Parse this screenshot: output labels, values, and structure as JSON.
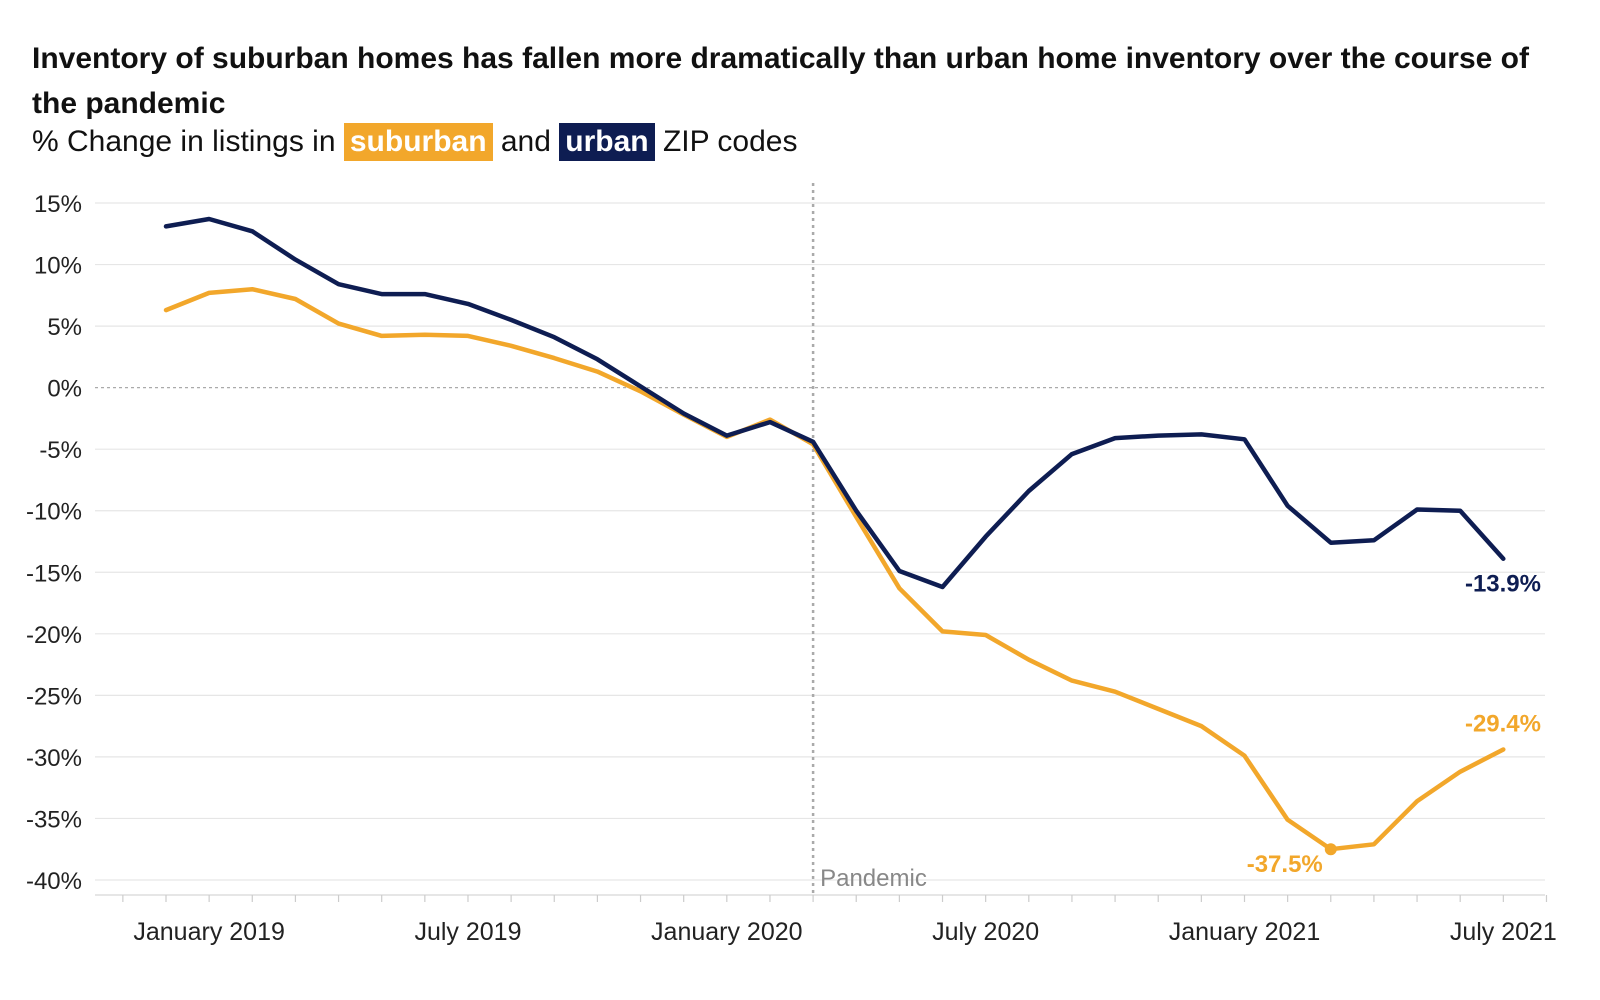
{
  "title": "Inventory of suburban homes has fallen more dramatically than urban home inventory over the course of the pandemic",
  "subtitle": {
    "prefix": "% Change in listings in",
    "suburban_label": "suburban",
    "connector": "and",
    "urban_label": "urban",
    "suffix": "ZIP codes"
  },
  "colors": {
    "suburban": "#F2A72B",
    "urban": "#0E1D52",
    "grid": "#e6e6e6",
    "zero": "#aaaaaa",
    "pandemic": "#aaaaaa"
  },
  "chart_data": {
    "type": "line",
    "x": [
      "2018-12",
      "2019-01",
      "2019-02",
      "2019-03",
      "2019-04",
      "2019-05",
      "2019-06",
      "2019-07",
      "2019-08",
      "2019-09",
      "2019-10",
      "2019-11",
      "2019-12",
      "2020-01",
      "2020-02",
      "2020-03",
      "2020-04",
      "2020-05",
      "2020-06",
      "2020-07",
      "2020-08",
      "2020-09",
      "2020-10",
      "2020-11",
      "2020-12",
      "2021-01",
      "2021-02",
      "2021-03",
      "2021-04",
      "2021-05",
      "2021-06",
      "2021-07"
    ],
    "series": [
      {
        "name": "suburban",
        "values": [
          6.3,
          7.7,
          8.0,
          7.2,
          5.2,
          4.2,
          4.3,
          4.2,
          3.4,
          2.4,
          1.3,
          -0.3,
          -2.2,
          -4.0,
          -2.6,
          -4.6,
          -10.5,
          -16.3,
          -19.8,
          -20.1,
          -22.1,
          -23.8,
          -24.7,
          -26.1,
          -27.5,
          -29.9,
          -35.1,
          -37.5,
          -37.1,
          -33.6,
          -31.2,
          -29.4
        ]
      },
      {
        "name": "urban",
        "values": [
          13.1,
          13.7,
          12.7,
          10.4,
          8.4,
          7.6,
          7.6,
          6.8,
          5.5,
          4.1,
          2.3,
          0.1,
          -2.1,
          -3.9,
          -2.8,
          -4.4,
          -10.0,
          -14.9,
          -16.2,
          -12.1,
          -8.4,
          -5.4,
          -4.1,
          -3.9,
          -3.8,
          -4.2,
          -9.6,
          -12.6,
          -12.4,
          -9.9,
          -10.0,
          -13.9
        ]
      }
    ],
    "ylim": [
      -40,
      15
    ],
    "y_ticks": [
      "15%",
      "10%",
      "5%",
      "0%",
      "-5%",
      "-10%",
      "-15%",
      "-20%",
      "-25%",
      "-30%",
      "-35%",
      "-40%"
    ],
    "x_tick_labels": [
      "January 2019",
      "July 2019",
      "January 2020",
      "July 2020",
      "January 2021",
      "July 2021"
    ],
    "annotations": {
      "pandemic": {
        "x": "2020-03",
        "label": "Pandemic"
      },
      "suburban_min": {
        "x": "2021-03",
        "label": "-37.5%"
      },
      "suburban_last": {
        "x": "2021-07",
        "label": "-29.4%"
      },
      "urban_last": {
        "x": "2021-07",
        "label": "-13.9%"
      }
    },
    "grid": true,
    "legend": "inline in subtitle"
  }
}
